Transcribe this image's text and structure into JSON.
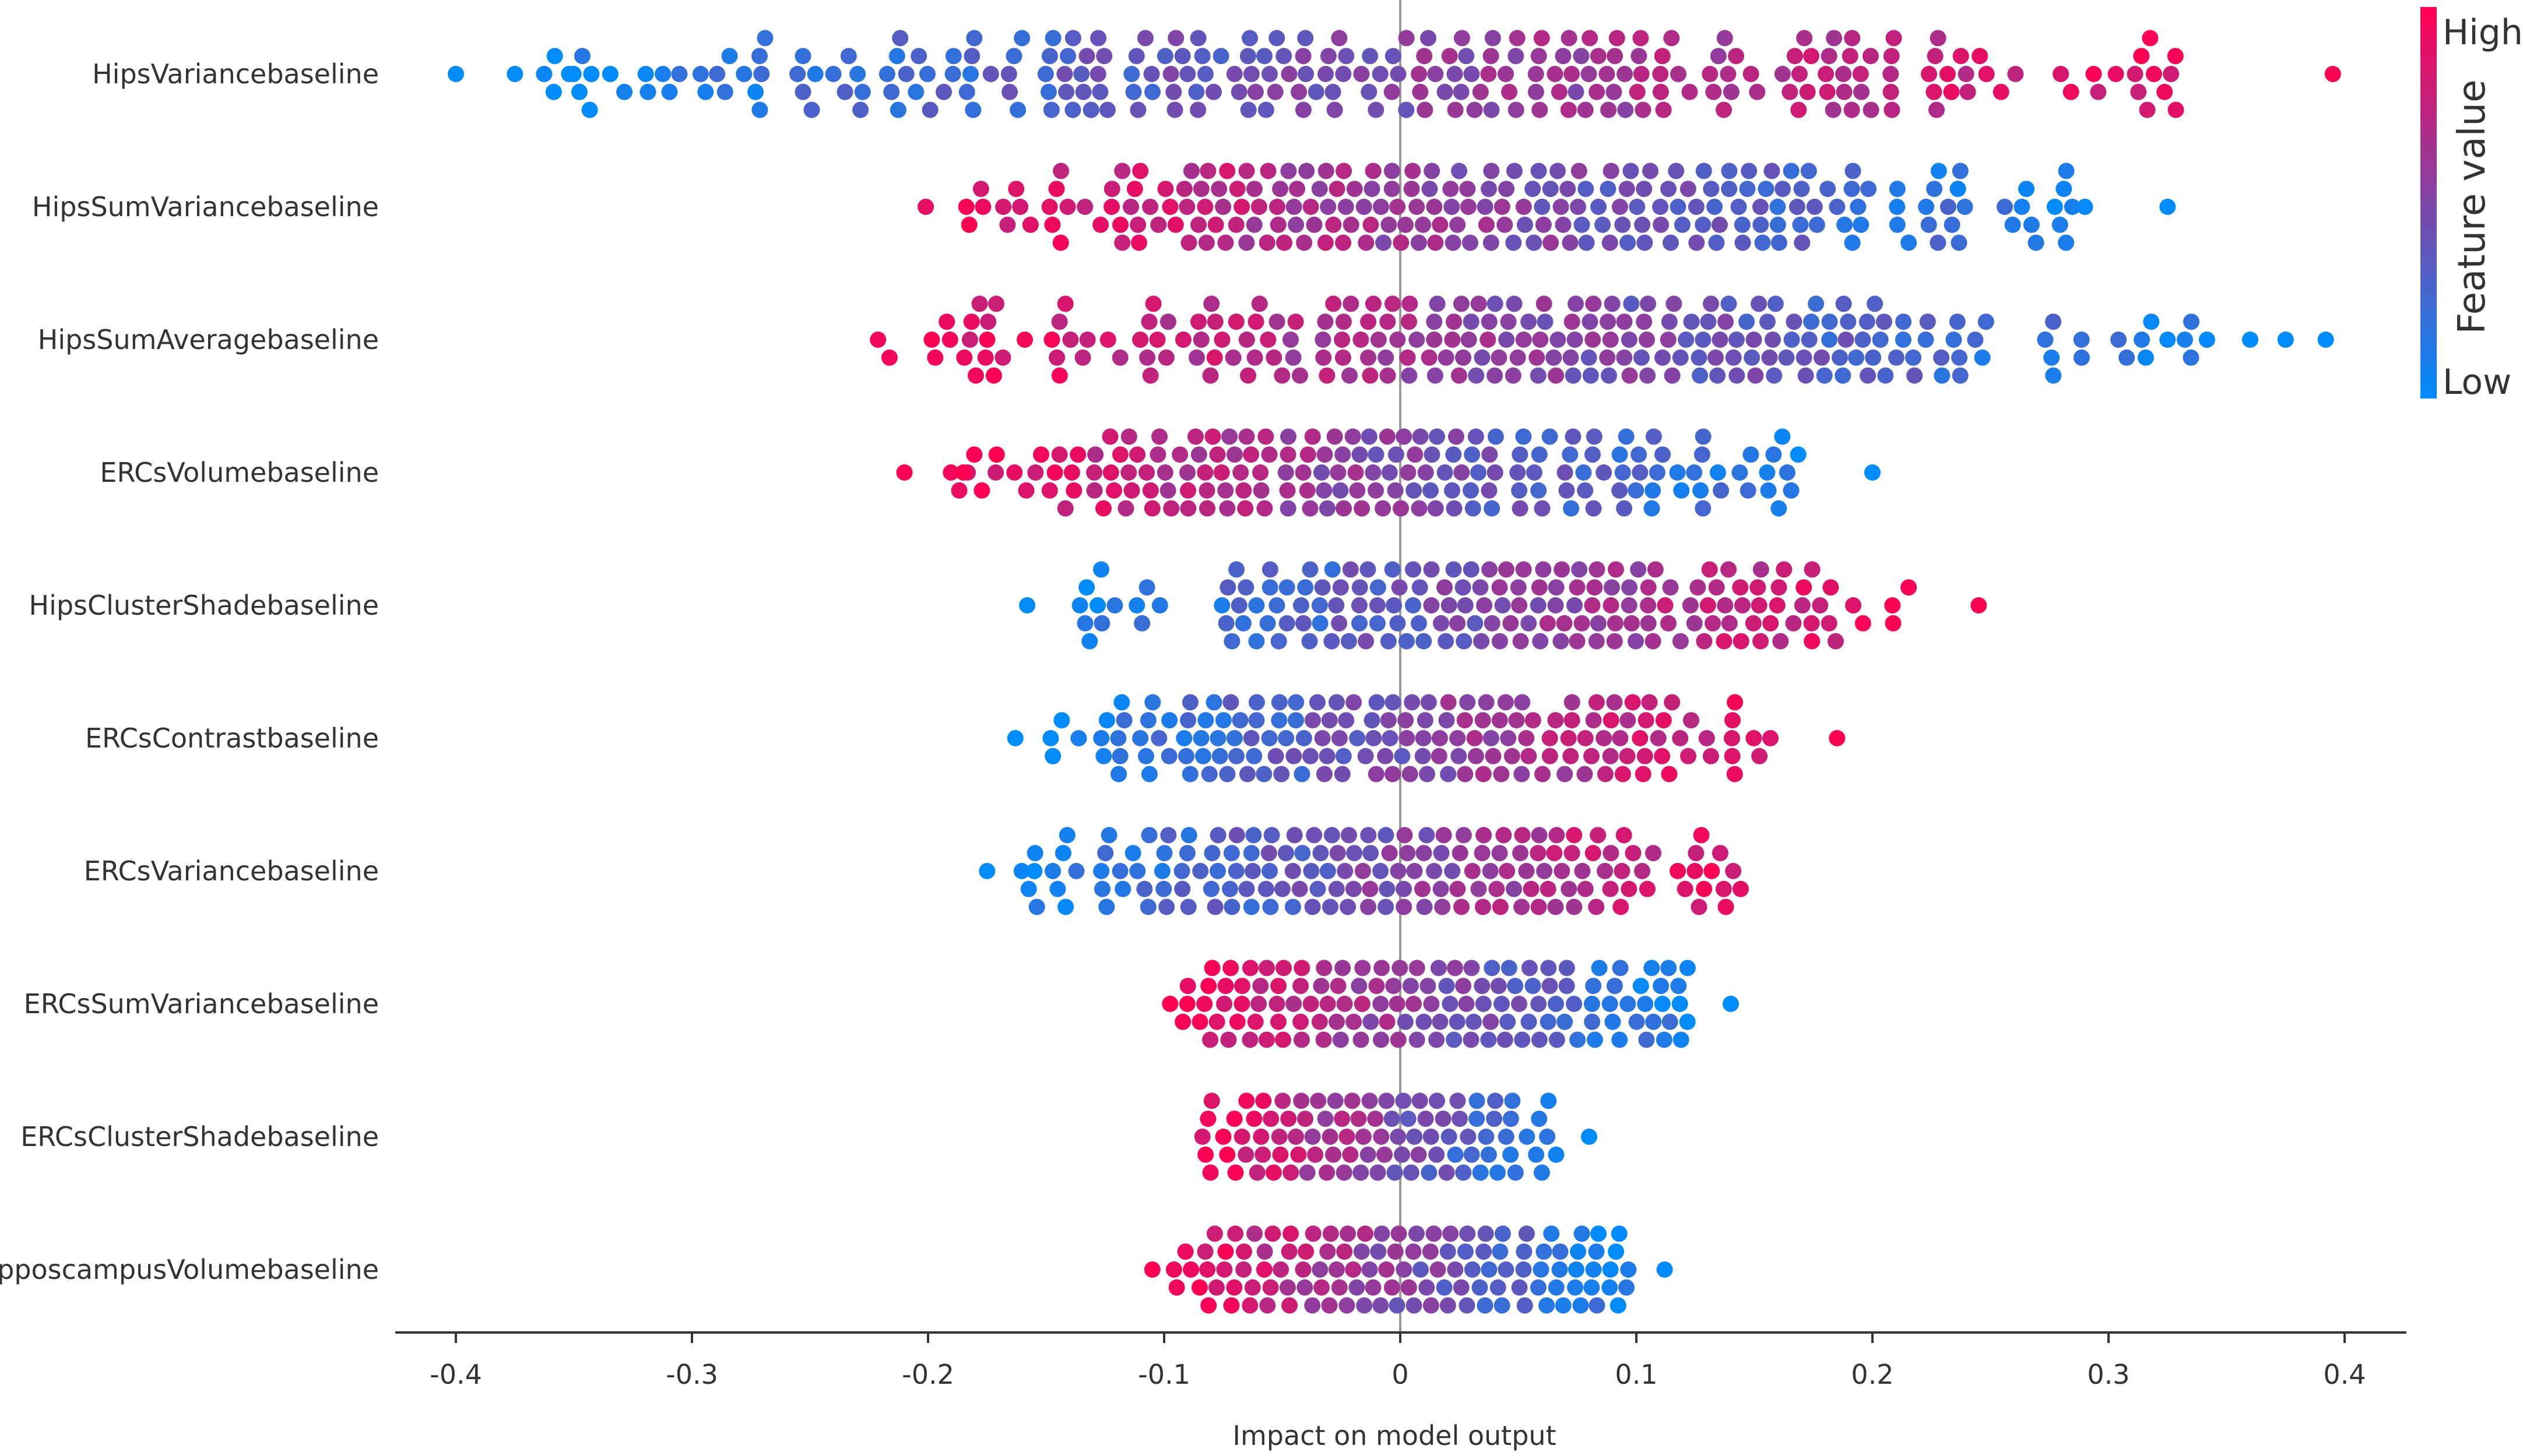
{
  "chart_data": {
    "type": "scatter",
    "subtype": "shap-beeswarm",
    "title": "",
    "xlabel": "Impact on model output",
    "ylabel": "",
    "xlim": [
      -0.43,
      0.43
    ],
    "x_ticks": [
      -0.4,
      -0.3,
      -0.2,
      -0.1,
      0,
      0.1,
      0.2,
      0.3,
      0.4
    ],
    "x_tick_labels": [
      "-0.4",
      "-0.3",
      "-0.2",
      "-0.1",
      "0",
      "0.1",
      "0.2",
      "0.3",
      "0.4"
    ],
    "grid": false,
    "zero_line": true,
    "colorbar": {
      "label": "Feature value",
      "high_label": "High",
      "low_label": "Low",
      "high_color": "#ff0052",
      "low_color": "#008bfb",
      "placement": "right"
    },
    "features": [
      {
        "name": "HipsVariancebaseline",
        "min": -0.4,
        "max": 0.395,
        "direction": "positive",
        "outliers": [
          {
            "x": -0.4,
            "v": 0.0
          },
          {
            "x": -0.375,
            "v": 0.0
          },
          {
            "x": -0.352,
            "v": 0.0
          },
          {
            "x": 0.395,
            "v": 1.0
          }
        ]
      },
      {
        "name": "HipsSumVariancebaseline",
        "min": -0.225,
        "max": 0.325,
        "direction": "negative",
        "outliers": [
          {
            "x": 0.29,
            "v": 0.02
          },
          {
            "x": 0.325,
            "v": 0.0
          }
        ]
      },
      {
        "name": "HipsSumAveragebaseline",
        "min": -0.25,
        "max": 0.392,
        "direction": "negative",
        "outliers": [
          {
            "x": 0.325,
            "v": 0.02
          },
          {
            "x": 0.36,
            "v": 0.0
          },
          {
            "x": 0.375,
            "v": 0.0
          },
          {
            "x": 0.392,
            "v": 0.0
          }
        ]
      },
      {
        "name": "ERCsVolumebaseline",
        "min": -0.21,
        "max": 0.2,
        "direction": "negative",
        "outliers": [
          {
            "x": -0.21,
            "v": 1.0
          },
          {
            "x": -0.185,
            "v": 1.0
          },
          {
            "x": 0.2,
            "v": 0.0
          }
        ]
      },
      {
        "name": "HipsClusterShadebaseline",
        "min": -0.158,
        "max": 0.245,
        "direction": "positive",
        "outliers": [
          {
            "x": -0.158,
            "v": 0.0
          },
          {
            "x": 0.245,
            "v": 1.0
          }
        ]
      },
      {
        "name": "ERCsContrastbaseline",
        "min": -0.163,
        "max": 0.185,
        "direction": "positive",
        "outliers": [
          {
            "x": -0.163,
            "v": 0.0
          },
          {
            "x": 0.185,
            "v": 1.0
          }
        ]
      },
      {
        "name": "ERCsVariancebaseline",
        "min": -0.175,
        "max": 0.172,
        "direction": "positive",
        "outliers": [
          {
            "x": -0.175,
            "v": 0.0
          },
          {
            "x": -0.155,
            "v": 0.0
          }
        ]
      },
      {
        "name": "ERCsSumVariancebaseline",
        "min": -0.11,
        "max": 0.14,
        "direction": "negative",
        "outliers": [
          {
            "x": 0.14,
            "v": 0.0
          }
        ]
      },
      {
        "name": "ERCsClusterShadebaseline",
        "min": -0.092,
        "max": 0.08,
        "direction": "negative",
        "outliers": [
          {
            "x": 0.08,
            "v": 0.0
          }
        ]
      },
      {
        "name": "HipposcampusVolumebaseline",
        "min": -0.105,
        "max": 0.112,
        "direction": "negative",
        "outliers": [
          {
            "x": -0.105,
            "v": 1.0
          },
          {
            "x": 0.112,
            "v": 0.0
          }
        ]
      }
    ]
  }
}
